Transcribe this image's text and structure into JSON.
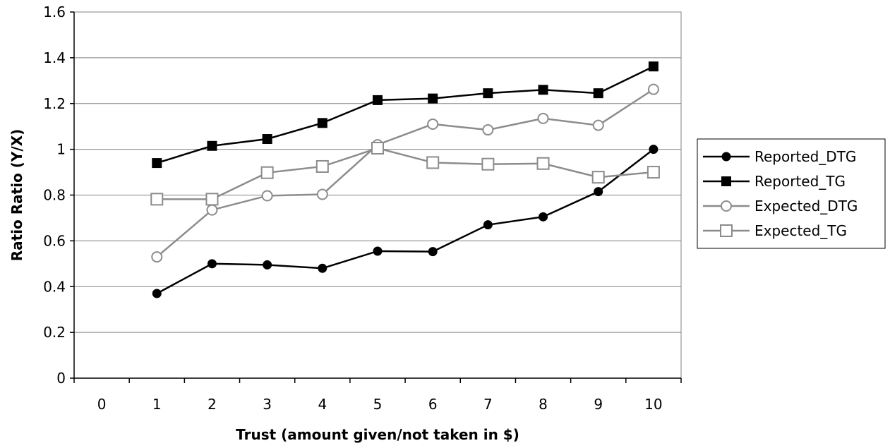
{
  "chart_data": {
    "type": "line",
    "title": "",
    "xlabel": "Trust (amount given/not taken in $)",
    "ylabel": "Ratio Ratio (Y/X)",
    "categories": [
      "0",
      "1",
      "2",
      "3",
      "4",
      "5",
      "6",
      "7",
      "8",
      "9",
      "10"
    ],
    "ylim": [
      0,
      1.6
    ],
    "yticks": [
      "0",
      "0.2",
      "0.4",
      "0.6",
      "0.8",
      "1",
      "1.2",
      "1.4",
      "1.6"
    ],
    "grid": "horizontal",
    "legend_position": "right",
    "x": [
      1,
      2,
      3,
      4,
      5,
      6,
      7,
      8,
      9,
      10
    ],
    "series": [
      {
        "name": "Reported_DTG",
        "color": "#000000",
        "marker": "circle-filled",
        "values": [
          0.37,
          0.5,
          0.495,
          0.48,
          0.555,
          0.553,
          0.67,
          0.705,
          0.815,
          1.0
        ]
      },
      {
        "name": "Reported_TG",
        "color": "#000000",
        "marker": "square-filled",
        "values": [
          0.94,
          1.015,
          1.045,
          1.115,
          1.215,
          1.222,
          1.245,
          1.26,
          1.245,
          1.362
        ]
      },
      {
        "name": "Expected_DTG",
        "color": "#8c8c8c",
        "marker": "circle-open",
        "values": [
          0.53,
          0.735,
          0.797,
          0.803,
          1.02,
          1.11,
          1.085,
          1.135,
          1.105,
          1.262
        ]
      },
      {
        "name": "Expected_TG",
        "color": "#8c8c8c",
        "marker": "square-open",
        "values": [
          0.782,
          0.782,
          0.898,
          0.925,
          1.005,
          0.942,
          0.935,
          0.938,
          0.878,
          0.9
        ]
      }
    ]
  }
}
